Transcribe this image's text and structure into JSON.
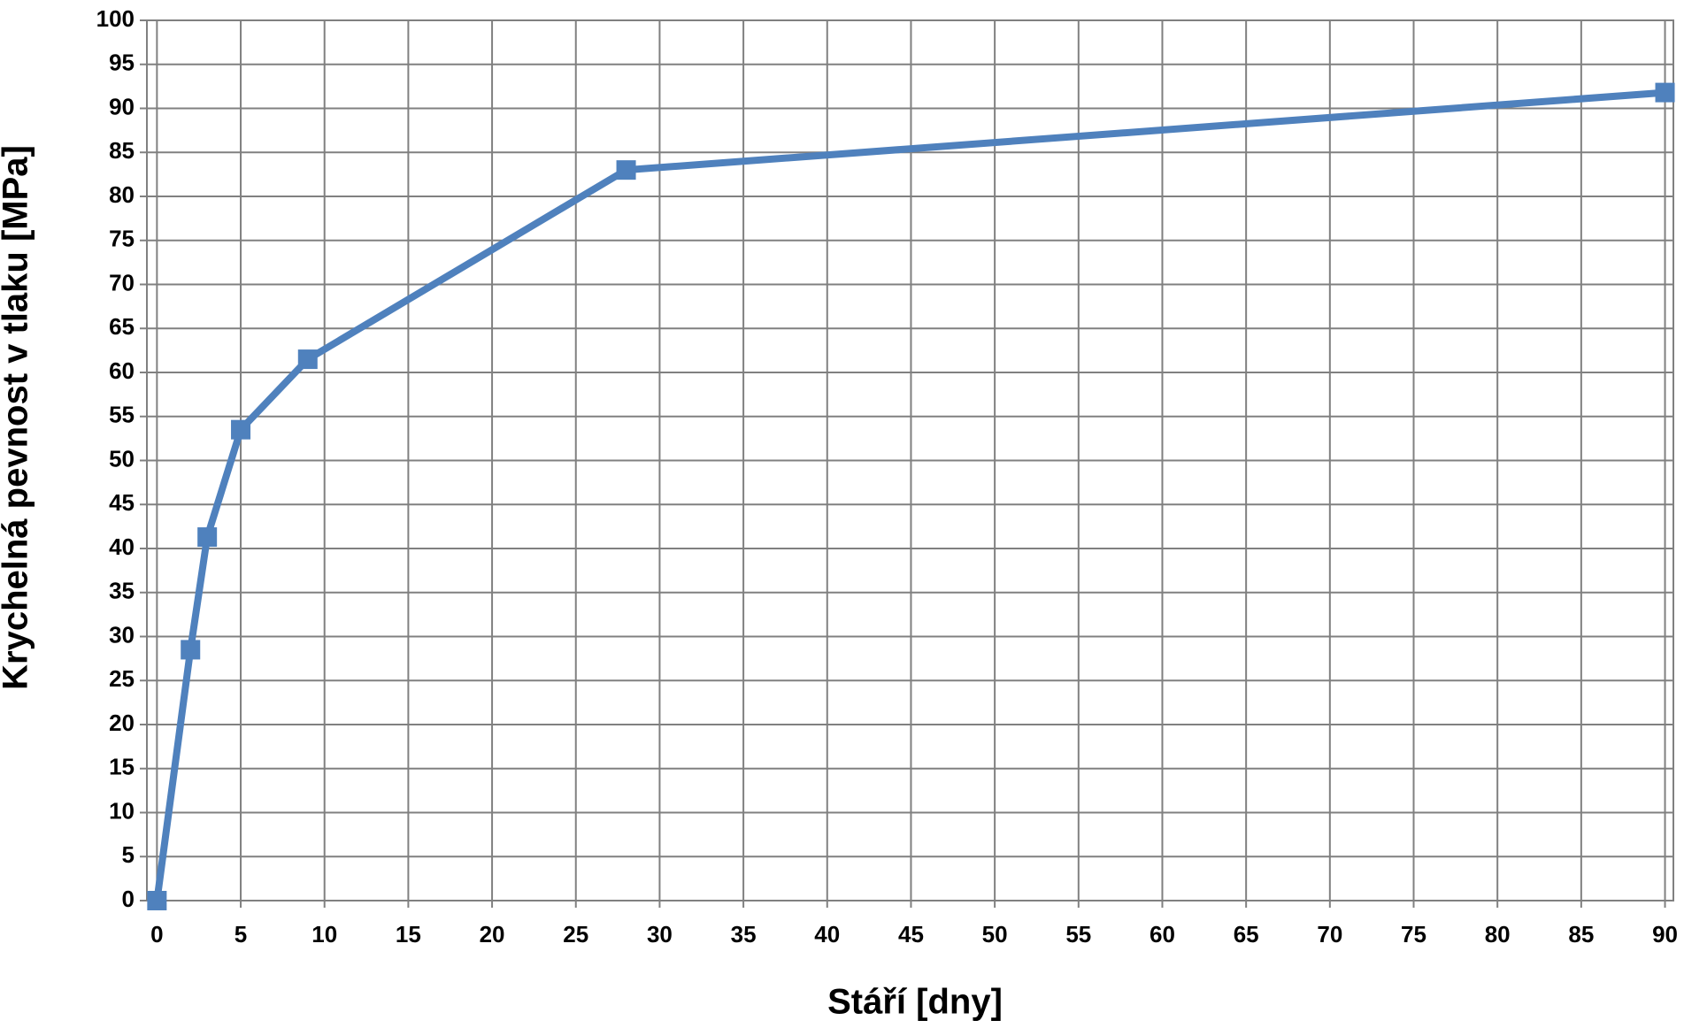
{
  "chart_data": {
    "type": "line",
    "x_label": "Stáří [dny]",
    "y_label": "Krychelná pevnost v tlaku [MPa]",
    "x": [
      0,
      2,
      3,
      5,
      9,
      28,
      90
    ],
    "series": [
      {
        "color": "#4f81bd",
        "values": [
          0,
          28.5,
          41.3,
          53.5,
          61.5,
          83,
          91.8
        ]
      }
    ],
    "xlim": [
      -0.6,
      90.5
    ],
    "xticks": [
      0,
      5,
      10,
      15,
      20,
      25,
      30,
      35,
      40,
      45,
      50,
      55,
      60,
      65,
      70,
      75,
      80,
      85,
      90
    ],
    "ylim": [
      0,
      100
    ],
    "yticks": [
      0,
      5,
      10,
      15,
      20,
      25,
      30,
      35,
      40,
      45,
      50,
      55,
      60,
      65,
      70,
      75,
      80,
      85,
      90,
      95,
      100
    ],
    "grid": true,
    "marker": "square"
  }
}
